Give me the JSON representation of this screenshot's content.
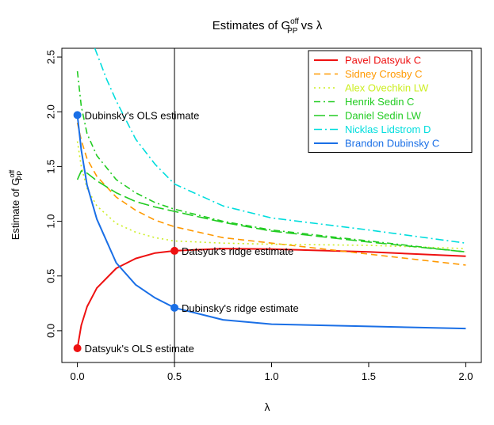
{
  "chart_data": {
    "type": "line",
    "title": {
      "main": "Estimates of G",
      "sup": "off",
      "sub": "PP",
      "suffix": " vs λ"
    },
    "xlabel": "λ",
    "ylabel": {
      "main": "Estimate of G",
      "sup": "off",
      "sub": "PP"
    },
    "xlim": [
      -0.08,
      2.08
    ],
    "ylim": [
      -0.29,
      2.58
    ],
    "xticks": [
      {
        "v": 0,
        "label": "0.0"
      },
      {
        "v": 0.5,
        "label": "0.5"
      },
      {
        "v": 1,
        "label": "1.0"
      },
      {
        "v": 1.5,
        "label": "1.5"
      },
      {
        "v": 2,
        "label": "2.0"
      }
    ],
    "yticks": [
      {
        "v": 0,
        "label": "0.0"
      },
      {
        "v": 0.5,
        "label": "0.5"
      },
      {
        "v": 1,
        "label": "1.0"
      },
      {
        "v": 1.5,
        "label": "1.5"
      },
      {
        "v": 2,
        "label": "2.0"
      },
      {
        "v": 2.5,
        "label": "2.5"
      }
    ],
    "vline": 0.5,
    "legend_position": "top-right",
    "series": [
      {
        "name": "Pavel Datsyuk",
        "pos": "C",
        "color": "#ee1111",
        "dash": "",
        "width": 2,
        "x": [
          0,
          0.02,
          0.05,
          0.1,
          0.2,
          0.3,
          0.4,
          0.5,
          0.75,
          1.0,
          1.5,
          2.0
        ],
        "y": [
          -0.16,
          0.05,
          0.22,
          0.39,
          0.57,
          0.66,
          0.71,
          0.73,
          0.75,
          0.745,
          0.72,
          0.68
        ]
      },
      {
        "name": "Sidney Crosby",
        "pos": "C",
        "color": "#ff9900",
        "dash": "8,5",
        "width": 1.6,
        "x": [
          0,
          0.02,
          0.05,
          0.1,
          0.2,
          0.3,
          0.4,
          0.5,
          0.75,
          1.0,
          1.5,
          2.0
        ],
        "y": [
          1.9,
          1.74,
          1.57,
          1.41,
          1.22,
          1.1,
          1.01,
          0.95,
          0.85,
          0.8,
          0.7,
          0.6
        ]
      },
      {
        "name": "Alex Ovechkin",
        "pos": "LW",
        "color": "#ccee22",
        "dash": "2,4",
        "width": 1.6,
        "x": [
          0,
          0.02,
          0.05,
          0.1,
          0.2,
          0.3,
          0.4,
          0.5,
          0.75,
          1.0,
          1.5,
          2.0
        ],
        "y": [
          1.73,
          1.5,
          1.3,
          1.14,
          0.98,
          0.9,
          0.85,
          0.82,
          0.8,
          0.79,
          0.78,
          0.75
        ]
      },
      {
        "name": "Henrik Sedin",
        "pos": "C",
        "color": "#22cc22",
        "dash": "8,4,2,4",
        "width": 1.6,
        "x": [
          0,
          0.02,
          0.05,
          0.1,
          0.2,
          0.3,
          0.4,
          0.5,
          0.75,
          1.0,
          1.5,
          2.0
        ],
        "y": [
          2.37,
          2.05,
          1.8,
          1.6,
          1.38,
          1.26,
          1.17,
          1.11,
          1.0,
          0.92,
          0.82,
          0.72
        ]
      },
      {
        "name": "Daniel Sedin",
        "pos": "LW",
        "color": "#22cc22",
        "dash": "14,5",
        "width": 1.6,
        "x": [
          0,
          0.02,
          0.05,
          0.1,
          0.2,
          0.3,
          0.4,
          0.5,
          0.75,
          1.0,
          1.5,
          2.0
        ],
        "y": [
          1.38,
          1.46,
          1.44,
          1.37,
          1.26,
          1.18,
          1.13,
          1.09,
          0.99,
          0.91,
          0.81,
          0.72
        ]
      },
      {
        "name": "Nicklas Lidstrom",
        "pos": "D",
        "color": "#00dddd",
        "dash": "10,4,2,4",
        "width": 1.6,
        "x": [
          0.09,
          0.15,
          0.2,
          0.3,
          0.4,
          0.5,
          0.75,
          1.0,
          1.5,
          2.0
        ],
        "y": [
          2.58,
          2.3,
          2.1,
          1.75,
          1.52,
          1.34,
          1.14,
          1.03,
          0.92,
          0.8
        ]
      },
      {
        "name": "Brandon Dubinsky",
        "pos": "C",
        "color": "#1a6fe6",
        "dash": "",
        "width": 2,
        "x": [
          0,
          0.02,
          0.05,
          0.1,
          0.2,
          0.3,
          0.4,
          0.5,
          0.75,
          1.0,
          1.5,
          2.0
        ],
        "y": [
          1.97,
          1.65,
          1.33,
          1.02,
          0.62,
          0.42,
          0.3,
          0.21,
          0.1,
          0.06,
          0.04,
          0.02
        ]
      }
    ],
    "points": [
      {
        "x": 0,
        "y": 1.97,
        "color": "#1a6fe6",
        "label": "Dubinsky's OLS estimate"
      },
      {
        "x": 0,
        "y": -0.16,
        "color": "#ee1111",
        "label": "Datsyuk's OLS estimate"
      },
      {
        "x": 0.5,
        "y": 0.73,
        "color": "#ee1111",
        "label": "Datsyuk's ridge estimate"
      },
      {
        "x": 0.5,
        "y": 0.21,
        "color": "#1a6fe6",
        "label": "Dubinsky's ridge estimate"
      }
    ]
  }
}
